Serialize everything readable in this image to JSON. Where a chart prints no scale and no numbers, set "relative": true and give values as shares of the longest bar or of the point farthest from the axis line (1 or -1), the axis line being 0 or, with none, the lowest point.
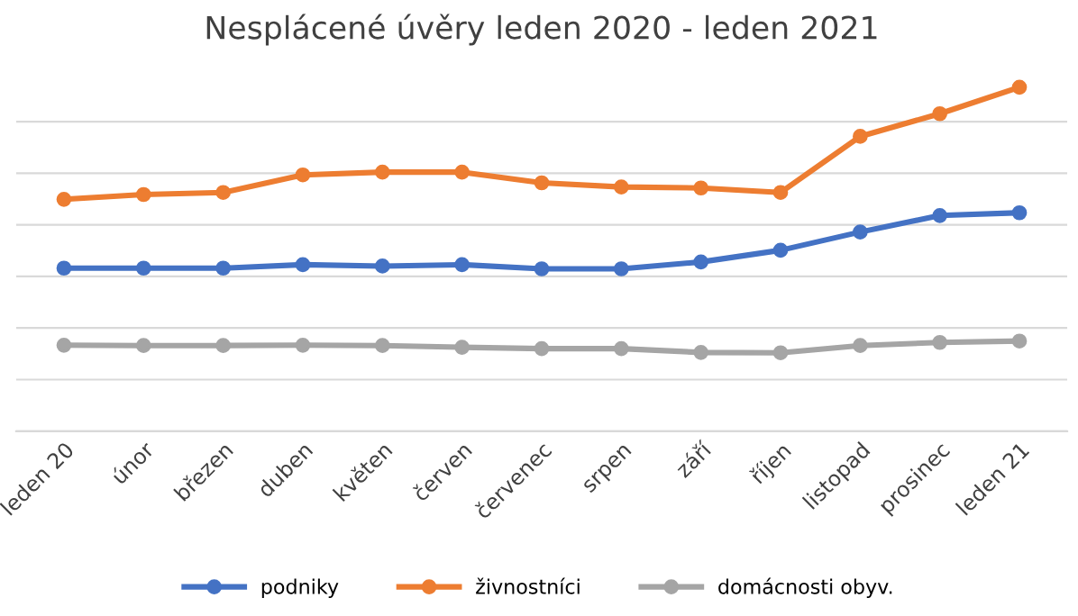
{
  "chart_data": {
    "type": "line",
    "title": "Nesplácené úvěry leden 2020 - leden 2021",
    "relative": true,
    "grid": "y",
    "legend": "bottom",
    "marker": "circle",
    "line_style": "solid",
    "categories": [
      "leden 20",
      "únor",
      "březen",
      "duben",
      "květen",
      "červen",
      "červenec",
      "srpen",
      "září",
      "říjen",
      "listopad",
      "prosinec",
      "leden 21"
    ],
    "series": [
      {
        "name": "podniky",
        "color": "#4472c4",
        "values": [
          0.474,
          0.474,
          0.474,
          0.484,
          0.48,
          0.484,
          0.472,
          0.472,
          0.492,
          0.526,
          0.579,
          0.627,
          0.635
        ]
      },
      {
        "name": "živnostníci",
        "color": "#ed7d31",
        "values": [
          0.674,
          0.688,
          0.694,
          0.745,
          0.753,
          0.753,
          0.722,
          0.71,
          0.707,
          0.694,
          0.857,
          0.923,
          1
        ]
      },
      {
        "name": "domácnosti obyv.",
        "color": "#a5a5a5",
        "values": [
          0.25,
          0.249,
          0.249,
          0.25,
          0.249,
          0.244,
          0.24,
          0.24,
          0.229,
          0.228,
          0.249,
          0.258,
          0.262
        ]
      }
    ]
  }
}
